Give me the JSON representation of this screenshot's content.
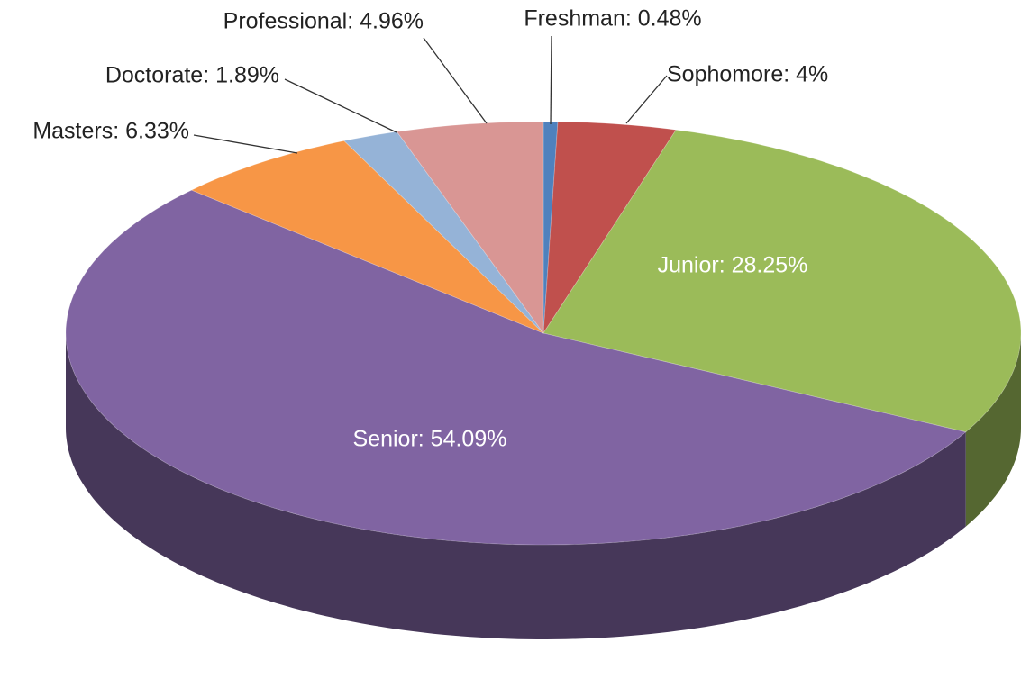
{
  "chart_data": {
    "type": "pie",
    "values": [
      0.48,
      4,
      28.25,
      54.09,
      6.33,
      1.89,
      4.96
    ],
    "value_labels": [
      "Freshman: 0.48%",
      "Sophomore: 4%",
      "Junior: 28.25%",
      "Senior: 54.09%",
      "Masters: 6.33%",
      "Doctorate: 1.89%",
      "Professional: 4.96%"
    ],
    "colors": [
      "#4f81bd",
      "#c0504d",
      "#9bbb59",
      "#8064a2",
      "#f79646",
      "#95b3d7",
      "#d99694"
    ]
  }
}
